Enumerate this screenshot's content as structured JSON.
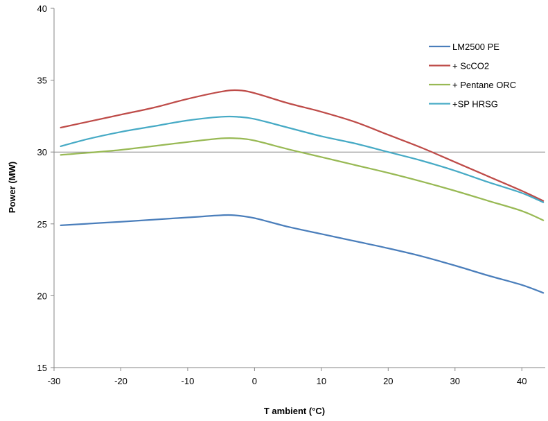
{
  "chart_data": {
    "type": "line",
    "title": "",
    "xlabel": "T ambient (°C)",
    "ylabel": "Power (MW)",
    "xlim": [
      -30,
      43.5
    ],
    "ylim": [
      15,
      40
    ],
    "xticks": [
      -30,
      -20,
      -10,
      0,
      10,
      20,
      30,
      40
    ],
    "yticks": [
      15,
      20,
      25,
      30,
      35,
      40
    ],
    "reference_line_y": 30,
    "grid": false,
    "legend_position": "top-right",
    "series": [
      {
        "name": "LM2500 PE",
        "color": "#4a7ebb",
        "points": [
          [
            -29,
            24.9
          ],
          [
            -20,
            25.15
          ],
          [
            -10,
            25.45
          ],
          [
            -5,
            25.6
          ],
          [
            -3,
            25.6
          ],
          [
            0,
            25.4
          ],
          [
            5,
            24.8
          ],
          [
            10,
            24.3
          ],
          [
            15,
            23.8
          ],
          [
            20,
            23.3
          ],
          [
            25,
            22.75
          ],
          [
            30,
            22.1
          ],
          [
            35,
            21.4
          ],
          [
            40,
            20.75
          ],
          [
            43.2,
            20.2
          ]
        ]
      },
      {
        "name": "+ ScCO2",
        "color": "#be4b48",
        "points": [
          [
            -29,
            31.7
          ],
          [
            -25,
            32.1
          ],
          [
            -20,
            32.6
          ],
          [
            -15,
            33.1
          ],
          [
            -10,
            33.7
          ],
          [
            -5,
            34.2
          ],
          [
            -2.5,
            34.3
          ],
          [
            0,
            34.1
          ],
          [
            5,
            33.4
          ],
          [
            10,
            32.8
          ],
          [
            15,
            32.1
          ],
          [
            20,
            31.2
          ],
          [
            25,
            30.3
          ],
          [
            30,
            29.3
          ],
          [
            35,
            28.3
          ],
          [
            40,
            27.3
          ],
          [
            43.2,
            26.6
          ]
        ]
      },
      {
        "name": "+ Pentane ORC",
        "color": "#98b954",
        "points": [
          [
            -29,
            29.8
          ],
          [
            -20,
            30.15
          ],
          [
            -10,
            30.7
          ],
          [
            -5,
            30.95
          ],
          [
            -2.5,
            30.95
          ],
          [
            0,
            30.8
          ],
          [
            5,
            30.2
          ],
          [
            10,
            29.65
          ],
          [
            15,
            29.1
          ],
          [
            20,
            28.55
          ],
          [
            25,
            27.95
          ],
          [
            30,
            27.3
          ],
          [
            35,
            26.6
          ],
          [
            40,
            25.9
          ],
          [
            43.2,
            25.25
          ]
        ]
      },
      {
        "name": "+SP HRSG",
        "color": "#46aac5",
        "points": [
          [
            -29,
            30.4
          ],
          [
            -25,
            30.9
          ],
          [
            -20,
            31.4
          ],
          [
            -15,
            31.8
          ],
          [
            -10,
            32.2
          ],
          [
            -5,
            32.45
          ],
          [
            -2.5,
            32.45
          ],
          [
            0,
            32.3
          ],
          [
            5,
            31.7
          ],
          [
            10,
            31.1
          ],
          [
            15,
            30.6
          ],
          [
            20,
            30.0
          ],
          [
            25,
            29.4
          ],
          [
            30,
            28.7
          ],
          [
            35,
            27.9
          ],
          [
            40,
            27.15
          ],
          [
            43.2,
            26.5
          ]
        ]
      }
    ]
  }
}
